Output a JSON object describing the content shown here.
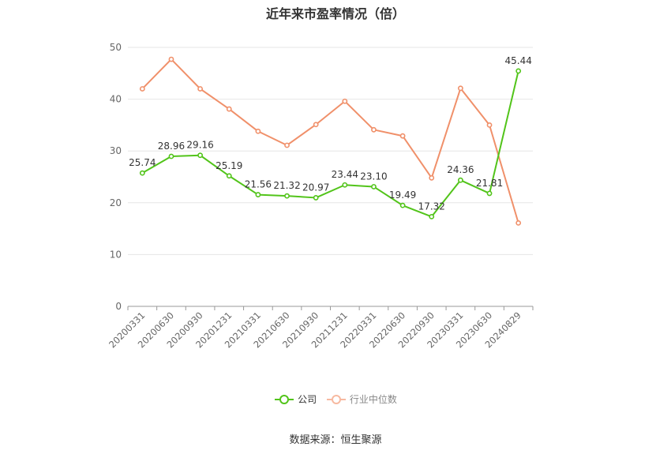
{
  "title": "近年来市盈率情况（倍）",
  "source": "数据来源：恒生聚源",
  "chart_data": {
    "type": "line",
    "title": "近年来市盈率情况（倍）",
    "categories": [
      "20200331",
      "20200630",
      "20200930",
      "20201231",
      "20210331",
      "20210630",
      "20210930",
      "20211231",
      "20220331",
      "20220630",
      "20220930",
      "20230331",
      "20230630",
      "20240829"
    ],
    "series": [
      {
        "name": "公司",
        "color": "#52c41a",
        "values": [
          25.74,
          28.96,
          29.16,
          25.19,
          21.56,
          21.32,
          20.97,
          23.44,
          23.1,
          19.49,
          17.32,
          24.36,
          21.81,
          45.44
        ],
        "labels": [
          "25.74",
          "28.96",
          "29.16",
          "25.19",
          "21.56",
          "21.32",
          "20.97",
          "23.44",
          "23.10",
          "19.49",
          "17.32",
          "24.36",
          "21.81",
          "45.44"
        ]
      },
      {
        "name": "行业中位数",
        "color": "#f0906a",
        "values": [
          42.0,
          47.7,
          42.0,
          38.1,
          33.8,
          31.1,
          35.1,
          39.6,
          34.1,
          32.9,
          24.8,
          42.1,
          35.0,
          16.1
        ]
      }
    ],
    "ylim": [
      0,
      50
    ],
    "yticks": [
      "0",
      "10",
      "20",
      "30",
      "40",
      "50"
    ],
    "grid": true,
    "legend_position": "bottom"
  }
}
